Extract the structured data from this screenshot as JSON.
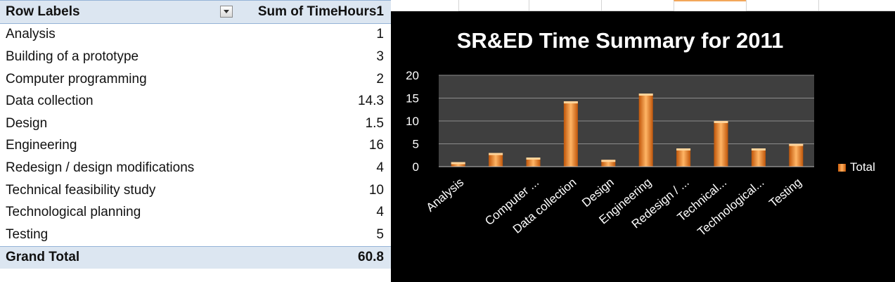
{
  "pivot": {
    "header": {
      "row_labels": "Row Labels",
      "sum_label": "Sum of TimeHours1"
    },
    "rows": [
      {
        "label": "Analysis",
        "value": "1"
      },
      {
        "label": "Building of a prototype",
        "value": "3"
      },
      {
        "label": "Computer programming",
        "value": "2"
      },
      {
        "label": "Data collection",
        "value": "14.3"
      },
      {
        "label": "Design",
        "value": "1.5"
      },
      {
        "label": "Engineering",
        "value": "16"
      },
      {
        "label": "Redesign / design modifications",
        "value": "4"
      },
      {
        "label": "Technical feasibility study",
        "value": "10"
      },
      {
        "label": "Technological planning",
        "value": "4"
      },
      {
        "label": "Testing",
        "value": "5"
      }
    ],
    "total": {
      "label": "Grand Total",
      "value": "60.8"
    }
  },
  "chart_data": {
    "type": "bar",
    "title": "SR&ED Time Summary for 2011",
    "categories": [
      "Analysis",
      "",
      "Computer ...",
      "Data collection",
      "Design",
      "Engineering",
      "Redesign / ...",
      "Technical...",
      "Technological...",
      "Testing"
    ],
    "series": [
      {
        "name": "Total",
        "values": [
          1,
          3,
          2,
          14.3,
          1.5,
          16,
          4,
          10,
          4,
          5
        ]
      }
    ],
    "ylim": [
      0,
      20
    ],
    "yticks": [
      "0",
      "5",
      "10",
      "15",
      "20"
    ],
    "grid": true,
    "legend_position": "right",
    "colors": {
      "bar_dark": "#c0560a",
      "bar_light": "#ffb565",
      "plot_bg": "#3f3f3f",
      "chart_bg": "#000000"
    }
  }
}
